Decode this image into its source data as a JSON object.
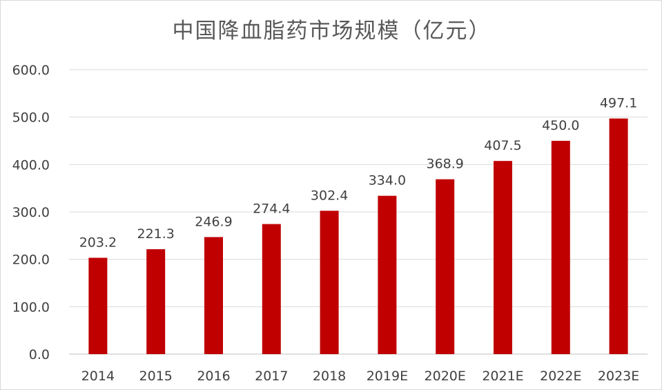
{
  "chart_data": {
    "type": "bar",
    "title": "中国降血脂药市场规模（亿元）",
    "categories": [
      "2014",
      "2015",
      "2016",
      "2017",
      "2018",
      "2019E",
      "2020E",
      "2021E",
      "2022E",
      "2023E"
    ],
    "values": [
      203.2,
      221.3,
      246.9,
      274.4,
      302.4,
      334.0,
      368.9,
      407.5,
      450.0,
      497.1
    ],
    "value_labels": [
      "203.2",
      "221.3",
      "246.9",
      "274.4",
      "302.4",
      "334.0",
      "368.9",
      "407.5",
      "450.0",
      "497.1"
    ],
    "xlabel": "",
    "ylabel": "",
    "ylim": [
      0,
      600
    ],
    "y_ticks": [
      "0.0",
      "100.0",
      "200.0",
      "300.0",
      "400.0",
      "500.0",
      "600.0"
    ],
    "grid": true,
    "legend": "none",
    "bar_color": "#c00000"
  }
}
